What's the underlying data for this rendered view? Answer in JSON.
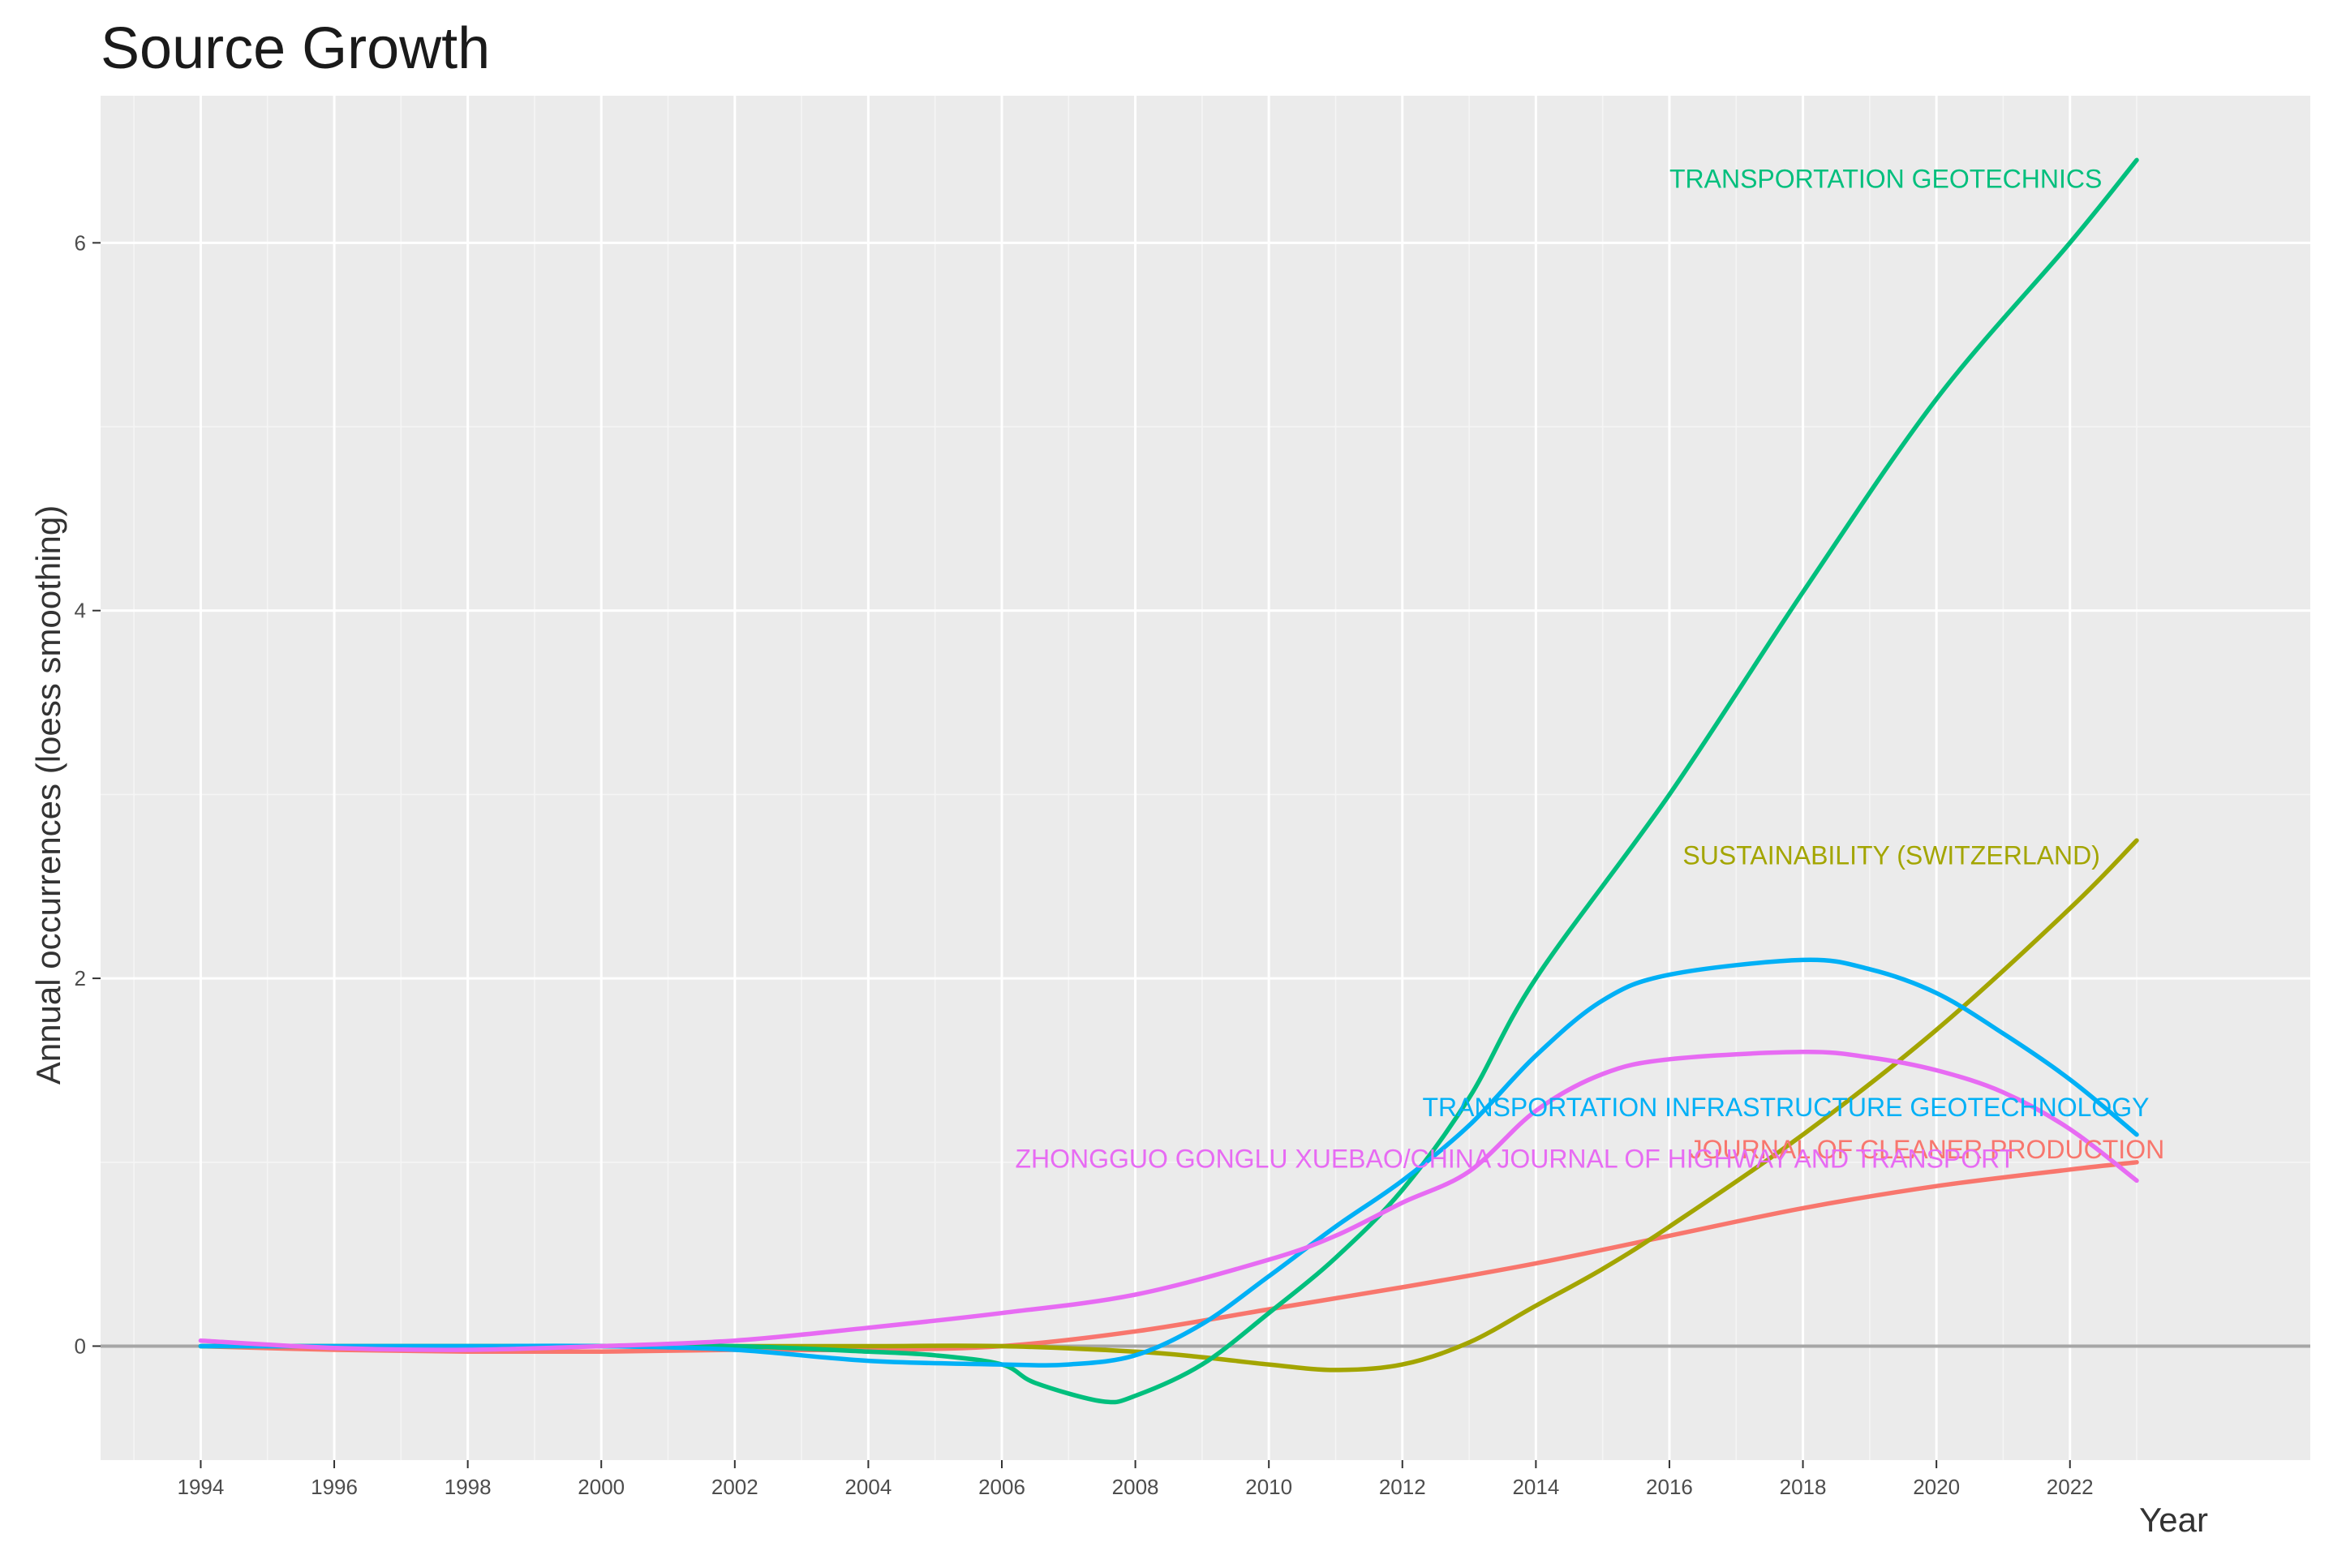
{
  "chart_data": {
    "type": "line",
    "title": "Source Growth",
    "xlabel": "Year",
    "ylabel": "Annual occurrences (loess smoothing)",
    "xlim": [
      1992.5,
      2025.6
    ],
    "ylim": [
      -0.62,
      6.8
    ],
    "x_ticks": [
      1994,
      1996,
      1998,
      2000,
      2002,
      2004,
      2006,
      2008,
      2010,
      2012,
      2014,
      2016,
      2018,
      2020,
      2022
    ],
    "x_tick_labels": [
      "1994",
      "1996",
      "1998",
      "2000",
      "2002",
      "2004",
      "2006",
      "2008",
      "2010",
      "2012",
      "2014",
      "2016",
      "2018",
      "2020",
      "2022"
    ],
    "y_ticks": [
      0,
      2,
      4,
      6
    ],
    "y_tick_labels": [
      "0",
      "2",
      "4",
      "6"
    ],
    "grid": true,
    "zero_line": true,
    "series": [
      {
        "name": "JOURNAL OF CLEANER PRODUCTION",
        "color": "#F8766D",
        "points": [
          [
            1994,
            0
          ],
          [
            1996,
            -0.02
          ],
          [
            1998,
            -0.03
          ],
          [
            2000,
            -0.03
          ],
          [
            2002,
            -0.02
          ],
          [
            2004,
            -0.02
          ],
          [
            2006,
            0.0
          ],
          [
            2008,
            0.08
          ],
          [
            2010,
            0.2
          ],
          [
            2012,
            0.32
          ],
          [
            2014,
            0.45
          ],
          [
            2016,
            0.6
          ],
          [
            2018,
            0.75
          ],
          [
            2020,
            0.87
          ],
          [
            2022,
            0.96
          ],
          [
            2023,
            1.0
          ]
        ]
      },
      {
        "name": "SUSTAINABILITY (SWITZERLAND)",
        "color": "#A3A500",
        "points": [
          [
            1994,
            0
          ],
          [
            1996,
            0
          ],
          [
            1998,
            0
          ],
          [
            2000,
            0
          ],
          [
            2002,
            0
          ],
          [
            2004,
            0
          ],
          [
            2006,
            0
          ],
          [
            2008,
            -0.03
          ],
          [
            2009,
            -0.06
          ],
          [
            2010,
            -0.1
          ],
          [
            2011,
            -0.13
          ],
          [
            2012,
            -0.1
          ],
          [
            2013,
            0.02
          ],
          [
            2014,
            0.22
          ],
          [
            2015,
            0.42
          ],
          [
            2016,
            0.65
          ],
          [
            2018,
            1.15
          ],
          [
            2020,
            1.72
          ],
          [
            2022,
            2.38
          ],
          [
            2023,
            2.75
          ]
        ]
      },
      {
        "name": "TRANSPORTATION GEOTECHNICS",
        "color": "#00BF7D",
        "points": [
          [
            1994,
            0
          ],
          [
            1996,
            0
          ],
          [
            1998,
            0
          ],
          [
            2000,
            0
          ],
          [
            2002,
            0
          ],
          [
            2004,
            -0.03
          ],
          [
            2005,
            -0.05
          ],
          [
            2006,
            -0.1
          ],
          [
            2006.5,
            -0.2
          ],
          [
            2007.5,
            -0.3
          ],
          [
            2008,
            -0.27
          ],
          [
            2009,
            -0.1
          ],
          [
            2010,
            0.18
          ],
          [
            2011,
            0.48
          ],
          [
            2012,
            0.85
          ],
          [
            2013,
            1.35
          ],
          [
            2014,
            2.0
          ],
          [
            2016,
            3.0
          ],
          [
            2018,
            4.1
          ],
          [
            2020,
            5.15
          ],
          [
            2022,
            6.0
          ],
          [
            2023,
            6.45
          ]
        ]
      },
      {
        "name": "TRANSPORTATION INFRASTRUCTURE GEOTECHNOLOGY",
        "color": "#00B0F6",
        "points": [
          [
            1994,
            0
          ],
          [
            1996,
            0
          ],
          [
            1998,
            0
          ],
          [
            2000,
            0
          ],
          [
            2002,
            -0.02
          ],
          [
            2004,
            -0.08
          ],
          [
            2006,
            -0.1
          ],
          [
            2007,
            -0.1
          ],
          [
            2008,
            -0.05
          ],
          [
            2009,
            0.12
          ],
          [
            2010,
            0.38
          ],
          [
            2011,
            0.65
          ],
          [
            2012,
            0.9
          ],
          [
            2013,
            1.2
          ],
          [
            2014,
            1.58
          ],
          [
            2015,
            1.88
          ],
          [
            2016,
            2.02
          ],
          [
            2018,
            2.1
          ],
          [
            2019,
            2.05
          ],
          [
            2020,
            1.92
          ],
          [
            2021,
            1.7
          ],
          [
            2022,
            1.45
          ],
          [
            2023,
            1.15
          ]
        ]
      },
      {
        "name": "ZHONGGUO GONGLU XUEBAO/CHINA JOURNAL OF HIGHWAY AND TRANSPORT",
        "color": "#E76BF3",
        "points": [
          [
            1994,
            0.03
          ],
          [
            1996,
            -0.01
          ],
          [
            1998,
            -0.02
          ],
          [
            2000,
            0
          ],
          [
            2002,
            0.03
          ],
          [
            2004,
            0.1
          ],
          [
            2006,
            0.18
          ],
          [
            2008,
            0.28
          ],
          [
            2010,
            0.47
          ],
          [
            2011,
            0.6
          ],
          [
            2012,
            0.78
          ],
          [
            2013,
            0.95
          ],
          [
            2014,
            1.28
          ],
          [
            2015,
            1.48
          ],
          [
            2016,
            1.56
          ],
          [
            2018,
            1.6
          ],
          [
            2019,
            1.57
          ],
          [
            2020,
            1.5
          ],
          [
            2021,
            1.38
          ],
          [
            2022,
            1.18
          ],
          [
            2023,
            0.9
          ]
        ]
      }
    ],
    "annotations": [
      {
        "text": "TRANSPORTATION GEOTECHNICS",
        "series": 2,
        "x": 2016.0,
        "y": 6.3
      },
      {
        "text": "SUSTAINABILITY (SWITZERLAND)",
        "series": 1,
        "x": 2016.2,
        "y": 2.62
      },
      {
        "text": "TRANSPORTATION INFRASTRUCTURE GEOTECHNOLOGY",
        "series": 3,
        "x": 2012.3,
        "y": 1.25
      },
      {
        "text": "JOURNAL OF CLEANER PRODUCTION",
        "series": 0,
        "x": 2016.3,
        "y": 1.02
      },
      {
        "text": "ZHONGGUO GONGLU XUEBAO/CHINA JOURNAL OF HIGHWAY AND TRANSPORT",
        "series": 4,
        "x": 2006.2,
        "y": 0.97
      }
    ]
  }
}
